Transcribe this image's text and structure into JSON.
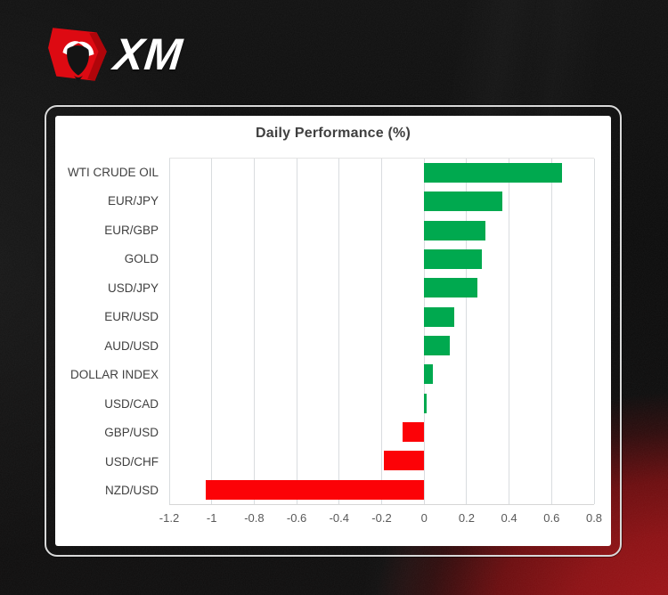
{
  "brand": {
    "logo_text": "XM",
    "logo_red": "#dd0a12",
    "bull_icon": "bull-icon"
  },
  "card": {
    "frame_border_color": "#d9d9d9",
    "background": "#ffffff"
  },
  "chart_data": {
    "type": "bar",
    "orientation": "horizontal",
    "title": "Daily Performance (%)",
    "categories": [
      "WTI CRUDE OIL",
      "EUR/JPY",
      "EUR/GBP",
      "GOLD",
      "USD/JPY",
      "EUR/USD",
      "AUD/USD",
      "DOLLAR INDEX",
      "USD/CAD",
      "GBP/USD",
      "USD/CHF",
      "NZD/USD"
    ],
    "values": [
      0.65,
      0.37,
      0.29,
      0.27,
      0.25,
      0.14,
      0.12,
      0.04,
      0.01,
      -0.1,
      -0.19,
      -1.03
    ],
    "positive_color": "#00a94f",
    "negative_color": "#fc0207",
    "xlabel": "",
    "ylabel": "",
    "xlim": [
      -1.2,
      0.8
    ],
    "xticks": [
      -1.2,
      -1,
      -0.8,
      -0.6,
      -0.4,
      -0.2,
      0,
      0.2,
      0.4,
      0.6,
      0.8
    ],
    "xtick_labels": [
      "-1.2",
      "-1",
      "-0.8",
      "-0.6",
      "-0.4",
      "-0.2",
      "0",
      "0.2",
      "0.4",
      "0.6",
      "0.8"
    ],
    "grid": true,
    "legend": false,
    "grid_color": "#d9dcdf",
    "title_color": "#3f3f3f",
    "label_color": "#404040",
    "tick_color": "#595959"
  }
}
